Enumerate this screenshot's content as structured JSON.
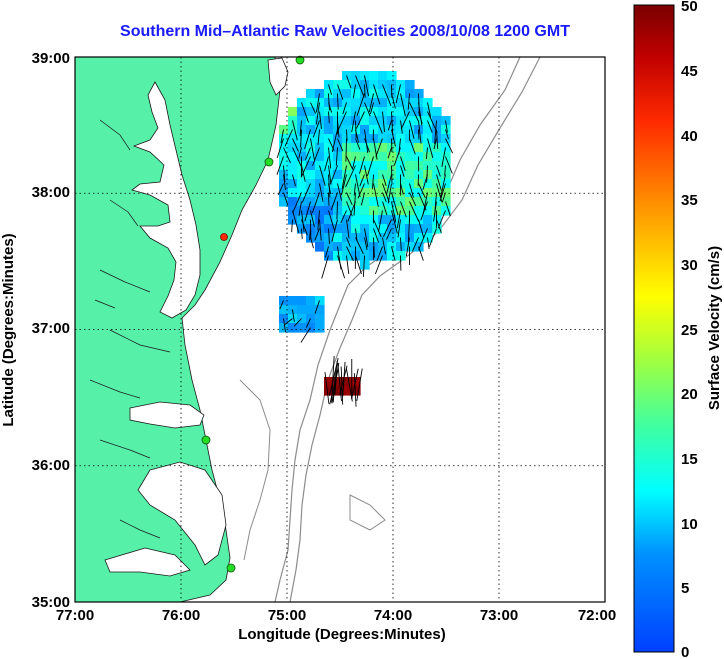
{
  "title": "Southern Mid–Atlantic Raw Velocities 2008/10/08 1200 GMT",
  "xaxis": {
    "label": "Longitude (Degrees:Minutes)",
    "ticks": [
      "77:00",
      "76:00",
      "75:00",
      "74:00",
      "73:00",
      "72:00"
    ]
  },
  "yaxis": {
    "label": "Latitude (Degrees:Minutes)",
    "ticks": [
      "39:00",
      "38:00",
      "37:00",
      "36:00",
      "35:00"
    ]
  },
  "colorbar": {
    "label": "Surface Velocity (cm/s)",
    "ticks": [
      "50",
      "45",
      "40",
      "35",
      "30",
      "25",
      "20",
      "15",
      "10",
      "5",
      "0"
    ],
    "range": [
      0,
      50
    ]
  },
  "colors": {
    "land": "#56f0a8",
    "title": "#1a1aff",
    "bathymetry": "#8c8c8c",
    "station": "#22dd22",
    "station_alert": "#ff2a00"
  },
  "chart_data": {
    "type": "heatmap",
    "title": "Southern Mid–Atlantic Raw Velocities 2008/10/08 1200 GMT",
    "xlabel": "Longitude (Degrees:Minutes)",
    "ylabel": "Latitude (Degrees:Minutes)",
    "xlim": [
      -77,
      -72
    ],
    "ylim": [
      35,
      39
    ],
    "value_label": "Surface Velocity (cm/s)",
    "value_range": [
      0,
      50
    ],
    "grid": true,
    "regions": [
      {
        "lon_range": [
          -75.1,
          -73.45
        ],
        "lat_range": [
          37.4,
          38.95
        ],
        "speed_range": [
          3,
          22
        ]
      },
      {
        "lon_range": [
          -75.1,
          -74.55
        ],
        "lat_range": [
          36.95,
          37.25
        ],
        "speed_range": [
          5,
          12
        ]
      },
      {
        "lon_range": [
          -74.55,
          -74.25
        ],
        "lat_range": [
          36.3,
          36.4
        ],
        "speed_range": [
          48,
          50
        ]
      }
    ]
  }
}
